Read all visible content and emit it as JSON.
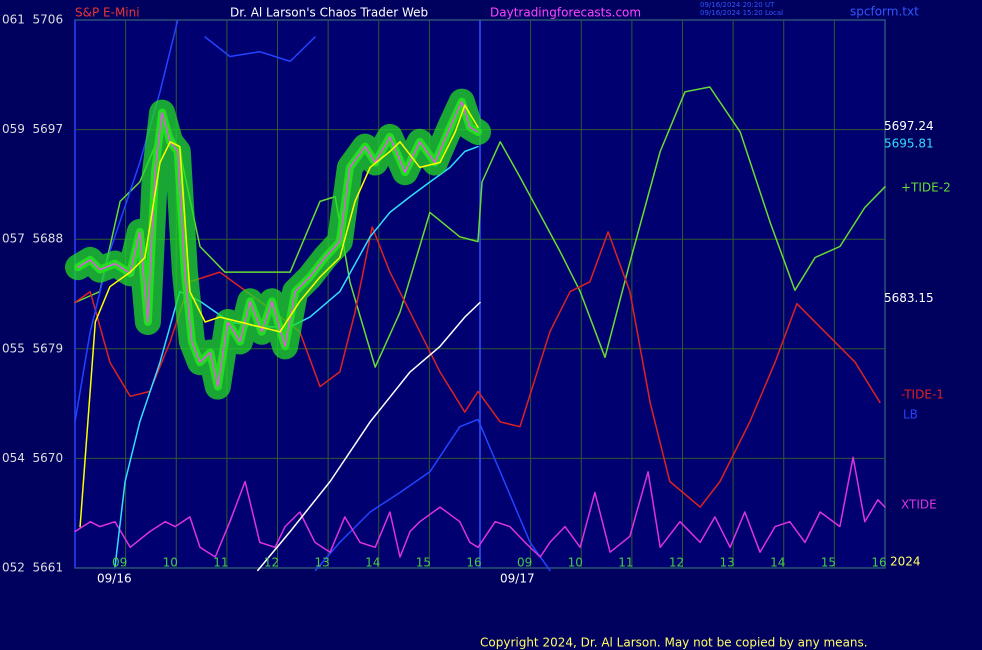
{
  "chart_data": {
    "type": "line",
    "instrument": "S&P E-Mini",
    "title": "Dr. Al Larson's Chaos Trader Web",
    "site": "Daytradingforecasts.com",
    "timestamps": [
      "09/16/2024 20:20 UT",
      "09/16/2024 15:20 Local"
    ],
    "file": "spcform.txt",
    "date_labels": [
      "09/16",
      "09/17"
    ],
    "year": "2024",
    "copyright": "Copyright 2024, Dr. Al Larson. May not be copied by any means.",
    "grid": true,
    "xlim": [
      8,
      24
    ],
    "xticks": [
      {
        "value": 9,
        "label": "09"
      },
      10,
      11,
      12,
      13,
      14,
      15,
      16,
      {
        "value": 17,
        "label": "09"
      },
      {
        "value": 18,
        "label": "10"
      },
      {
        "value": 19,
        "label": "11"
      },
      {
        "value": 20,
        "label": "12"
      },
      {
        "value": 21,
        "label": "13"
      },
      {
        "value": 22,
        "label": "14"
      },
      {
        "value": 23,
        "label": "15"
      },
      {
        "value": 24,
        "label": "16"
      }
    ],
    "ylim": [
      5661,
      5706
    ],
    "yticks": [
      {
        "value": 5706,
        "label": "061  5706"
      },
      {
        "value": 5697,
        "label": "059  5697"
      },
      {
        "value": 5688,
        "label": "057  5688"
      },
      {
        "value": 5679,
        "label": "055  5679"
      },
      {
        "value": 5670,
        "label": "054  5670"
      },
      {
        "value": 5661,
        "label": "052  5661"
      }
    ],
    "series": [
      {
        "name": "+TIDE-2",
        "color": "#66dd33",
        "x": [
          8.0,
          8.49,
          8.89,
          9.28,
          9.78,
          10.07,
          10.47,
          10.96,
          11.65,
          12.25,
          12.84,
          13.14,
          13.43,
          13.93,
          14.42,
          15.01,
          15.6,
          15.96,
          16.04,
          16.4,
          16.79,
          17.58,
          17.98,
          18.47,
          18.96,
          19.56,
          20.05,
          20.54,
          21.14,
          21.73,
          22.22,
          22.62,
          23.11,
          23.6,
          24.0
        ],
        "values": [
          5682.8,
          5683.7,
          5691.1,
          5692.7,
          5697.6,
          5695.2,
          5687.4,
          5685.3,
          5685.3,
          5685.3,
          5691.1,
          5691.5,
          5684.5,
          5677.5,
          5682.0,
          5690.2,
          5688.2,
          5687.8,
          5692.7,
          5696.0,
          5693.1,
          5687.0,
          5683.7,
          5678.3,
          5686.1,
          5695.2,
          5700.1,
          5700.5,
          5696.8,
          5689.4,
          5683.8,
          5686.5,
          5687.4,
          5690.6,
          5692.3
        ]
      },
      {
        "name": "-TIDE-1",
        "color": "#dd2222",
        "x": [
          8.0,
          8.3,
          8.69,
          9.09,
          9.48,
          9.88,
          10.27,
          10.86,
          11.65,
          12.44,
          12.84,
          13.23,
          13.53,
          13.87,
          14.22,
          14.62,
          15.21,
          15.7,
          15.96,
          16.4,
          16.79,
          17.38,
          17.78,
          18.17,
          18.53,
          18.96,
          19.36,
          19.75,
          20.35,
          20.74,
          21.33,
          21.83,
          22.26,
          22.81,
          23.41,
          23.9
        ],
        "values": [
          5682.8,
          5683.7,
          5677.9,
          5675.1,
          5675.5,
          5679.6,
          5684.5,
          5685.3,
          5682.9,
          5680.4,
          5675.9,
          5677.1,
          5682.0,
          5689.0,
          5685.3,
          5682.0,
          5677.1,
          5673.8,
          5675.5,
          5673.0,
          5672.6,
          5680.4,
          5683.7,
          5684.5,
          5688.6,
          5683.7,
          5674.6,
          5668.1,
          5666.0,
          5668.1,
          5673.0,
          5677.9,
          5682.7,
          5680.4,
          5677.9,
          5674.6
        ]
      },
      {
        "name": "LB",
        "color": "#2244ff",
        "x": [
          8.0,
          8.3,
          8.69,
          9.28,
          9.68,
          10.03,
          10.3,
          10.57,
          11.06,
          11.65,
          12.25,
          12.74,
          12.74,
          12.75,
          13.23,
          13.83,
          14.42,
          15.01,
          15.6,
          15.96,
          16.4,
          16.99,
          17.38
        ],
        "values": [
          5673.0,
          5680.4,
          5687.0,
          5694.3,
          5700.1,
          5706.0,
          null,
          5704.6,
          5703.0,
          5703.4,
          5702.6,
          5704.6,
          null,
          5660.8,
          5663.1,
          5665.6,
          5667.2,
          5668.9,
          5672.6,
          5673.2,
          5668.9,
          5663.1,
          5660.8
        ]
      },
      {
        "name": "XTIDE",
        "color": "#dd33dd",
        "x": [
          8.0,
          8.3,
          8.49,
          8.79,
          9.09,
          9.48,
          9.78,
          9.98,
          10.27,
          10.47,
          10.77,
          11.06,
          11.36,
          11.65,
          11.95,
          12.15,
          12.44,
          12.74,
          13.04,
          13.33,
          13.63,
          13.93,
          14.22,
          14.42,
          14.62,
          14.81,
          15.21,
          15.6,
          15.8,
          15.96,
          16.3,
          16.59,
          16.89,
          17.19,
          17.38,
          17.68,
          17.98,
          18.27,
          18.57,
          18.96,
          19.32,
          19.56,
          19.95,
          20.35,
          20.64,
          20.94,
          21.23,
          21.53,
          21.83,
          22.12,
          22.42,
          22.72,
          23.11,
          23.37,
          23.6,
          23.86,
          24.0
        ],
        "values": [
          5664.0,
          5664.8,
          5664.4,
          5664.8,
          5662.7,
          5664.0,
          5664.8,
          5664.4,
          5665.2,
          5662.7,
          5661.9,
          5664.8,
          5668.1,
          5663.1,
          5662.7,
          5664.4,
          5665.6,
          5663.1,
          5662.3,
          5665.2,
          5663.1,
          5662.7,
          5665.6,
          5661.9,
          5664.0,
          5664.8,
          5666.0,
          5664.8,
          5663.1,
          5662.7,
          5664.8,
          5664.4,
          5663.1,
          5661.9,
          5663.1,
          5664.4,
          5662.7,
          5667.2,
          5662.3,
          5663.6,
          5668.9,
          5662.7,
          5664.8,
          5663.1,
          5665.2,
          5662.7,
          5665.6,
          5662.3,
          5664.4,
          5664.8,
          5663.1,
          5665.6,
          5664.4,
          5670.1,
          5664.8,
          5666.6,
          5666.0
        ]
      },
      {
        "color": "#ffffff",
        "last": 5683.15,
        "x": [
          11.61,
          12.25,
          13.04,
          13.83,
          14.62,
          15.21,
          15.7,
          16.0
        ],
        "values": [
          5660.8,
          5664.0,
          5668.1,
          5673.0,
          5677.1,
          5679.2,
          5681.6,
          5682.8
        ]
      },
      {
        "color": "#33ddff",
        "last": 5695.81,
        "x": [
          8.79,
          8.99,
          9.28,
          9.68,
          10.07,
          10.47,
          11.06,
          11.65,
          12.25,
          12.64,
          13.23,
          13.83,
          14.22,
          14.62,
          15.01,
          15.41,
          15.7,
          15.96
        ],
        "values": [
          5661.1,
          5668.1,
          5673.0,
          5677.9,
          5683.7,
          5682.9,
          5681.2,
          5680.8,
          5680.8,
          5681.6,
          5683.7,
          5688.2,
          5690.2,
          5691.5,
          5692.7,
          5693.9,
          5695.2,
          5695.6
        ]
      },
      {
        "color": "#ff44ff",
        "last": 5697.24,
        "halo": "#22dd22",
        "x": [
          8.06,
          8.3,
          8.49,
          8.79,
          9.09,
          9.28,
          9.44,
          9.58,
          9.72,
          9.88,
          10.03,
          10.17,
          10.31,
          10.47,
          10.67,
          10.82,
          11.02,
          11.26,
          11.46,
          11.69,
          11.89,
          12.15,
          12.35,
          12.64,
          12.94,
          13.23,
          13.43,
          13.73,
          13.93,
          14.22,
          14.52,
          14.81,
          15.11,
          15.41,
          15.64,
          15.8,
          15.96
        ],
        "values": [
          5685.7,
          5686.3,
          5685.5,
          5686.0,
          5685.2,
          5688.6,
          5681.2,
          5693.5,
          5698.4,
          5696.0,
          5695.2,
          5685.3,
          5679.6,
          5677.9,
          5678.7,
          5675.9,
          5681.2,
          5679.6,
          5682.9,
          5680.4,
          5682.9,
          5679.2,
          5683.7,
          5684.9,
          5686.5,
          5687.8,
          5693.9,
          5695.6,
          5694.3,
          5696.4,
          5693.5,
          5696.0,
          5694.3,
          5697.2,
          5699.3,
          5697.2,
          5696.8
        ]
      },
      {
        "color": "#ffff00",
        "x": [
          8.1,
          8.4,
          8.69,
          9.09,
          9.38,
          9.68,
          9.88,
          10.07,
          10.27,
          10.57,
          10.86,
          11.26,
          11.65,
          12.05,
          12.44,
          12.84,
          13.23,
          13.53,
          13.83,
          14.22,
          14.42,
          14.81,
          15.21,
          15.51,
          15.7,
          15.96
        ],
        "values": [
          5664.4,
          5681.2,
          5684.1,
          5685.3,
          5686.5,
          5694.3,
          5696.0,
          5695.6,
          5683.7,
          5681.2,
          5681.6,
          5681.2,
          5680.8,
          5680.4,
          5682.9,
          5684.9,
          5686.5,
          5691.1,
          5693.9,
          5695.2,
          5696.0,
          5693.9,
          5694.3,
          5696.8,
          5699.0,
          5697.2
        ]
      }
    ]
  }
}
